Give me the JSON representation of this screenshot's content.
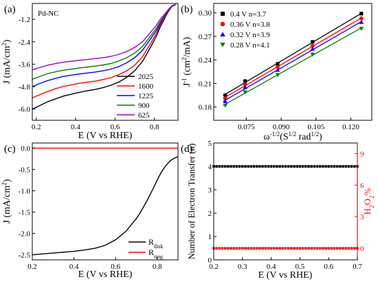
{
  "chart_data": [
    {
      "panel_label": "(a)",
      "type": "line",
      "annotation": "Pd-NC",
      "xlabel": "E (V vs RHE)",
      "ylabel": "J (mA/cm²)",
      "ylabel_parts": {
        "main": "J (mA/cm",
        "sup": "2",
        "tail": ")"
      },
      "xlim": [
        0.18,
        0.92
      ],
      "ylim": [
        -6.6,
        -0.35
      ],
      "xticks": [
        0.2,
        0.4,
        0.6,
        0.8
      ],
      "xtick_labels": [
        "0.2",
        "0.4",
        "0.6",
        "0.8"
      ],
      "yticks": [
        -6.0,
        -4.8,
        -3.6,
        -2.4,
        -1.2
      ],
      "ytick_labels": [
        "-6.0",
        "-4.8",
        "-3.6",
        "-2.4",
        "-1.2"
      ],
      "legend_position": "bottom-right",
      "series": [
        {
          "name": "2025",
          "color": "#000000",
          "x": [
            0.18,
            0.22,
            0.26,
            0.3,
            0.34,
            0.38,
            0.42,
            0.46,
            0.5,
            0.54,
            0.58,
            0.62,
            0.66,
            0.7,
            0.74,
            0.78,
            0.81,
            0.83,
            0.85,
            0.87,
            0.89,
            0.91
          ],
          "y": [
            -6.0,
            -5.8,
            -5.6,
            -5.45,
            -5.3,
            -5.2,
            -5.1,
            -5.02,
            -4.95,
            -4.85,
            -4.72,
            -4.55,
            -4.3,
            -3.95,
            -3.45,
            -2.7,
            -2.1,
            -1.6,
            -1.2,
            -0.8,
            -0.5,
            -0.4
          ]
        },
        {
          "name": "1600",
          "color": "#ff0000",
          "x": [
            0.18,
            0.22,
            0.26,
            0.3,
            0.34,
            0.38,
            0.42,
            0.46,
            0.5,
            0.54,
            0.58,
            0.62,
            0.66,
            0.7,
            0.74,
            0.78,
            0.81,
            0.83,
            0.85,
            0.87,
            0.89,
            0.91
          ],
          "y": [
            -5.4,
            -5.22,
            -5.05,
            -4.9,
            -4.78,
            -4.7,
            -4.62,
            -4.56,
            -4.5,
            -4.42,
            -4.32,
            -4.15,
            -3.95,
            -3.65,
            -3.2,
            -2.5,
            -1.95,
            -1.5,
            -1.15,
            -0.78,
            -0.5,
            -0.4
          ]
        },
        {
          "name": "1225",
          "color": "#0000ff",
          "x": [
            0.18,
            0.22,
            0.26,
            0.3,
            0.34,
            0.38,
            0.42,
            0.46,
            0.5,
            0.54,
            0.58,
            0.62,
            0.66,
            0.7,
            0.74,
            0.78,
            0.81,
            0.83,
            0.85,
            0.87,
            0.89,
            0.91
          ],
          "y": [
            -4.8,
            -4.62,
            -4.47,
            -4.35,
            -4.25,
            -4.18,
            -4.12,
            -4.07,
            -4.02,
            -3.95,
            -3.86,
            -3.72,
            -3.52,
            -3.25,
            -2.85,
            -2.25,
            -1.8,
            -1.4,
            -1.08,
            -0.75,
            -0.5,
            -0.4
          ]
        },
        {
          "name": "900",
          "color": "#008000",
          "x": [
            0.18,
            0.22,
            0.26,
            0.3,
            0.34,
            0.38,
            0.42,
            0.46,
            0.5,
            0.54,
            0.58,
            0.62,
            0.66,
            0.7,
            0.74,
            0.78,
            0.81,
            0.83,
            0.85,
            0.87,
            0.89,
            0.91
          ],
          "y": [
            -4.4,
            -4.25,
            -4.1,
            -4.0,
            -3.92,
            -3.86,
            -3.8,
            -3.75,
            -3.7,
            -3.64,
            -3.56,
            -3.42,
            -3.25,
            -3.0,
            -2.65,
            -2.1,
            -1.68,
            -1.32,
            -1.02,
            -0.72,
            -0.48,
            -0.4
          ]
        },
        {
          "name": "625",
          "color": "#9900cc",
          "x": [
            0.18,
            0.22,
            0.26,
            0.3,
            0.34,
            0.38,
            0.42,
            0.46,
            0.5,
            0.54,
            0.58,
            0.62,
            0.66,
            0.7,
            0.74,
            0.78,
            0.81,
            0.83,
            0.85,
            0.87,
            0.89,
            0.91
          ],
          "y": [
            -3.9,
            -3.77,
            -3.65,
            -3.56,
            -3.49,
            -3.44,
            -3.39,
            -3.35,
            -3.3,
            -3.25,
            -3.18,
            -3.07,
            -2.92,
            -2.7,
            -2.4,
            -1.9,
            -1.52,
            -1.2,
            -0.95,
            -0.68,
            -0.46,
            -0.4
          ]
        }
      ]
    },
    {
      "panel_label": "(b)",
      "type": "scatter",
      "xlabel": "ω^-1/2(S^1/2 rad^1/2)",
      "xlabel_parts": {
        "a": "ω",
        "b": "-1/2",
        "c": "(S",
        "d": "1/2",
        "e": " rad",
        "f": "1/2",
        "g": ")"
      },
      "ylabel": "J^-1 (cm²/mA)",
      "ylabel_parts": {
        "a": "J",
        "b": "-1",
        "c": " (cm",
        "d": "2",
        "e": "/mA)"
      },
      "xlim": [
        0.061,
        0.129
      ],
      "ylim": [
        0.163,
        0.312
      ],
      "xticks": [
        0.075,
        0.09,
        0.105,
        0.12
      ],
      "xtick_labels": [
        "0.075",
        "0.090",
        "0.105",
        "0.120"
      ],
      "yticks": [
        0.18,
        0.21,
        0.24,
        0.27,
        0.3
      ],
      "ytick_labels": [
        "0.18",
        "0.21",
        "0.24",
        "0.27",
        "0.30"
      ],
      "legend_position": "top-left",
      "series": [
        {
          "name": "0.4 V n=3.7",
          "color": "#000000",
          "marker": "square",
          "x": [
            0.066,
            0.0745,
            0.0885,
            0.1035,
            0.1245
          ],
          "y": [
            0.195,
            0.213,
            0.235,
            0.263,
            0.299
          ]
        },
        {
          "name": "0.36 V n=3.8",
          "color": "#ff0000",
          "marker": "circle",
          "x": [
            0.066,
            0.0745,
            0.0885,
            0.1035,
            0.1245
          ],
          "y": [
            0.191,
            0.209,
            0.231,
            0.258,
            0.293
          ]
        },
        {
          "name": "0.32 V n=3.9",
          "color": "#0000ff",
          "marker": "triangle-up",
          "x": [
            0.066,
            0.0745,
            0.0885,
            0.1035,
            0.1245
          ],
          "y": [
            0.187,
            0.205,
            0.227,
            0.254,
            0.288
          ]
        },
        {
          "name": "0.28 V n=4.1",
          "color": "#008000",
          "marker": "triangle-down",
          "x": [
            0.066,
            0.0745,
            0.0885,
            0.1035,
            0.1245
          ],
          "y": [
            0.182,
            0.199,
            0.221,
            0.247,
            0.28
          ]
        }
      ]
    },
    {
      "panel_label": "(c)",
      "type": "line",
      "xlabel": "E (V vs RHE)",
      "ylabel": "J (mA/cm²)",
      "ylabel_parts": {
        "main": "J (mA/cm",
        "sup": "2",
        "tail": ")"
      },
      "xlim": [
        0.2,
        0.9
      ],
      "ylim": [
        -2.62,
        0.12
      ],
      "xticks": [
        0.2,
        0.4,
        0.6,
        0.8
      ],
      "xtick_labels": [
        "0.2",
        "0.4",
        "0.6",
        "0.8"
      ],
      "yticks": [
        -2.5,
        -2.0,
        -1.5,
        -1.0,
        -0.5,
        0.0
      ],
      "ytick_labels": [
        "-2.5",
        "-2.0",
        "-1.5",
        "-1.0",
        "-0.5",
        "0.0"
      ],
      "legend_position": "bottom-right",
      "series": [
        {
          "name": "R_disk",
          "label_main": "R",
          "label_sub": "disk",
          "color": "#000000",
          "x": [
            0.2,
            0.25,
            0.3,
            0.35,
            0.4,
            0.45,
            0.5,
            0.55,
            0.6,
            0.65,
            0.7,
            0.72,
            0.74,
            0.76,
            0.78,
            0.8,
            0.82,
            0.84,
            0.86,
            0.88,
            0.9
          ],
          "y": [
            -2.5,
            -2.48,
            -2.46,
            -2.44,
            -2.42,
            -2.39,
            -2.35,
            -2.28,
            -2.15,
            -1.95,
            -1.65,
            -1.5,
            -1.33,
            -1.15,
            -0.95,
            -0.75,
            -0.56,
            -0.42,
            -0.31,
            -0.24,
            -0.2
          ]
        },
        {
          "name": "R_ring",
          "label_main": "R",
          "label_sub": "ring",
          "color": "#ff0000",
          "x": [
            0.2,
            0.9
          ],
          "y": [
            0.0,
            0.0
          ]
        }
      ]
    },
    {
      "panel_label": "(d)",
      "type": "scatter",
      "xlabel": "E (V vs RHE)",
      "ylabel": "Number of  Electron Transfer (n)",
      "ylabel_right": "H₂O₂%",
      "ylabel_right_parts": {
        "a": "H",
        "b": "2",
        "c": "O",
        "d": "2",
        "e": "%"
      },
      "xlim": [
        0.2,
        0.7
      ],
      "ylim": [
        0,
        5
      ],
      "ylim_right": [
        -1.1,
        10.0
      ],
      "xticks": [
        0.2,
        0.3,
        0.4,
        0.5,
        0.6,
        0.7
      ],
      "xtick_labels": [
        "0.2",
        "0.3",
        "0.4",
        "0.5",
        "0.6",
        "0.7"
      ],
      "yticks": [
        0,
        1,
        2,
        3,
        4,
        5
      ],
      "ytick_labels": [
        "0",
        "1",
        "2",
        "3",
        "4",
        "5"
      ],
      "yticks_right": [
        0,
        3,
        6,
        9
      ],
      "ytick_labels_right": [
        "0",
        "3",
        "6",
        "9"
      ],
      "series": [
        {
          "name": "n",
          "color": "#000000",
          "marker": "square",
          "axis": "left",
          "x": [
            0.2,
            0.21,
            0.22,
            0.23,
            0.24,
            0.25,
            0.26,
            0.27,
            0.28,
            0.29,
            0.3,
            0.31,
            0.32,
            0.33,
            0.34,
            0.35,
            0.36,
            0.37,
            0.38,
            0.39,
            0.4,
            0.41,
            0.42,
            0.43,
            0.44,
            0.45,
            0.46,
            0.47,
            0.48,
            0.49,
            0.5,
            0.51,
            0.52,
            0.53,
            0.54,
            0.55,
            0.56,
            0.57,
            0.58,
            0.59,
            0.6,
            0.61,
            0.62,
            0.63,
            0.64,
            0.65,
            0.66,
            0.67,
            0.68,
            0.69,
            0.7
          ],
          "y_const": 4.0
        },
        {
          "name": "H2O2%",
          "color": "#ff0000",
          "marker": "square",
          "axis": "right",
          "x": [
            0.2,
            0.21,
            0.22,
            0.23,
            0.24,
            0.25,
            0.26,
            0.27,
            0.28,
            0.29,
            0.3,
            0.31,
            0.32,
            0.33,
            0.34,
            0.35,
            0.36,
            0.37,
            0.38,
            0.39,
            0.4,
            0.41,
            0.42,
            0.43,
            0.44,
            0.45,
            0.46,
            0.47,
            0.48,
            0.49,
            0.5,
            0.51,
            0.52,
            0.53,
            0.54,
            0.55,
            0.56,
            0.57,
            0.58,
            0.59,
            0.6,
            0.61,
            0.62,
            0.63,
            0.64,
            0.65,
            0.66,
            0.67,
            0.68,
            0.69,
            0.7
          ],
          "y_const": 0.0
        }
      ]
    }
  ]
}
